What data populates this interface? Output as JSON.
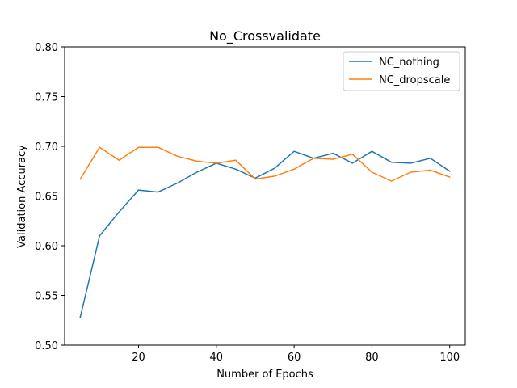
{
  "chart_data": {
    "type": "line",
    "title": "No_Crossvalidate",
    "xlabel": "Number of Epochs",
    "ylabel": "Validation Accuracy",
    "xlim": [
      1,
      104
    ],
    "ylim": [
      0.5,
      0.8
    ],
    "xticks": [
      20,
      40,
      60,
      80,
      100
    ],
    "xtick_labels": [
      "20",
      "40",
      "60",
      "80",
      "100"
    ],
    "yticks": [
      0.5,
      0.55,
      0.6,
      0.65,
      0.7,
      0.75,
      0.8
    ],
    "ytick_labels": [
      "0.50",
      "0.55",
      "0.60",
      "0.65",
      "0.70",
      "0.75",
      "0.80"
    ],
    "grid": false,
    "legend_position": "top-right",
    "x": [
      5,
      10,
      15,
      20,
      25,
      30,
      35,
      40,
      45,
      50,
      55,
      60,
      65,
      70,
      75,
      80,
      85,
      90,
      95,
      100
    ],
    "series": [
      {
        "name": "NC_nothing",
        "color": "#1f77b4",
        "values": [
          0.528,
          0.61,
          0.634,
          0.656,
          0.654,
          0.663,
          0.674,
          0.683,
          0.677,
          0.668,
          0.678,
          0.695,
          0.688,
          0.693,
          0.683,
          0.695,
          0.684,
          0.683,
          0.688,
          0.675
        ]
      },
      {
        "name": "NC_dropscale",
        "color": "#ff7f0e",
        "values": [
          0.667,
          0.699,
          0.686,
          0.699,
          0.699,
          0.69,
          0.685,
          0.683,
          0.686,
          0.667,
          0.67,
          0.677,
          0.688,
          0.687,
          0.692,
          0.674,
          0.665,
          0.674,
          0.676,
          0.669
        ]
      }
    ]
  }
}
